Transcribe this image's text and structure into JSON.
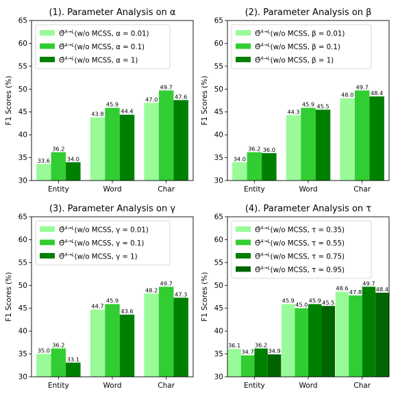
{
  "figure": {
    "background": "#ffffff"
  },
  "chart_data": [
    {
      "type": "bar",
      "title": "(1). Parameter Analysis on α",
      "ylabel": "F1 Scores (%)",
      "xlabel": "",
      "ylim": [
        30,
        65
      ],
      "yticks": [
        30,
        35,
        40,
        45,
        50,
        55,
        60,
        65
      ],
      "categories": [
        "Entity",
        "Word",
        "Char"
      ],
      "legend_position": "top-left",
      "series": [
        {
          "name": "Θ̃^{A→L}(w/o MCSS, α = 0.01)",
          "color": "#98fb98",
          "values": [
            33.6,
            43.8,
            47.0
          ]
        },
        {
          "name": "Θ̃^{A→L}(w/o MCSS, α = 0.1)",
          "color": "#32cd32",
          "values": [
            36.2,
            45.9,
            49.7
          ]
        },
        {
          "name": "Θ̃^{A→L}(w/o MCSS, α = 1)",
          "color": "#008000",
          "values": [
            34.0,
            44.4,
            47.6
          ]
        }
      ]
    },
    {
      "type": "bar",
      "title": "(2). Parameter Analysis on β",
      "ylabel": "F1 Scores (%)",
      "xlabel": "",
      "ylim": [
        30,
        65
      ],
      "yticks": [
        30,
        35,
        40,
        45,
        50,
        55,
        60,
        65
      ],
      "categories": [
        "Entity",
        "Word",
        "Char"
      ],
      "legend_position": "top-left",
      "series": [
        {
          "name": "Θ̃^{A→L}(w/o MCSS, β = 0.01)",
          "color": "#98fb98",
          "values": [
            34.0,
            44.3,
            48.0
          ]
        },
        {
          "name": "Θ̃^{A→L}(w/o MCSS, β = 0.1)",
          "color": "#32cd32",
          "values": [
            36.2,
            45.9,
            49.7
          ]
        },
        {
          "name": "Θ̃^{A→L}(w/o MCSS, β = 1)",
          "color": "#008000",
          "values": [
            36.0,
            45.5,
            48.4
          ]
        }
      ]
    },
    {
      "type": "bar",
      "title": "(3). Parameter Analysis on γ",
      "ylabel": "F1 Scores (%)",
      "xlabel": "",
      "ylim": [
        30,
        65
      ],
      "yticks": [
        30,
        35,
        40,
        45,
        50,
        55,
        60,
        65
      ],
      "categories": [
        "Entity",
        "Word",
        "Char"
      ],
      "legend_position": "top-left",
      "series": [
        {
          "name": "Θ̃^{A→L}(w/o MCSS, γ = 0.01)",
          "color": "#98fb98",
          "values": [
            35.0,
            44.7,
            48.2
          ]
        },
        {
          "name": "Θ̃^{A→L}(w/o MCSS, γ = 0.1)",
          "color": "#32cd32",
          "values": [
            36.2,
            45.9,
            49.7
          ]
        },
        {
          "name": "Θ̃^{A→L}(w/o MCSS, γ = 1)",
          "color": "#008000",
          "values": [
            33.1,
            43.6,
            47.3
          ]
        }
      ]
    },
    {
      "type": "bar",
      "title": "(4). Parameter Analysis on τ",
      "ylabel": "F1 Scores (%)",
      "xlabel": "",
      "ylim": [
        30,
        65
      ],
      "yticks": [
        30,
        35,
        40,
        45,
        50,
        55,
        60,
        65
      ],
      "categories": [
        "Entity",
        "Word",
        "Char"
      ],
      "legend_position": "top-left",
      "series": [
        {
          "name": "Θ̃^{A→L}(w/o MCSS, τ = 0.35)",
          "color": "#98fb98",
          "values": [
            36.1,
            45.9,
            48.6
          ]
        },
        {
          "name": "Θ̃^{A→L}(w/o MCSS, τ = 0.55)",
          "color": "#32cd32",
          "values": [
            34.7,
            45.0,
            47.8
          ]
        },
        {
          "name": "Θ̃^{A→L}(w/o MCSS, τ = 0.75)",
          "color": "#008000",
          "values": [
            36.2,
            45.9,
            49.7
          ]
        },
        {
          "name": "Θ̃^{A→L}(w/o MCSS, τ = 0.95)",
          "color": "#006400",
          "values": [
            34.9,
            45.5,
            48.4
          ]
        }
      ]
    }
  ]
}
